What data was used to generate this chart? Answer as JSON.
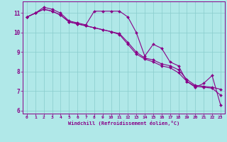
{
  "title": "",
  "xlabel": "Windchill (Refroidissement éolien,°C)",
  "ylabel": "",
  "bg_color": "#b0e8e8",
  "line_color": "#880088",
  "grid_color": "#88cccc",
  "spine_color": "#880088",
  "x_hours": [
    0,
    1,
    2,
    3,
    4,
    5,
    6,
    7,
    8,
    9,
    10,
    11,
    12,
    13,
    14,
    15,
    16,
    17,
    18,
    19,
    20,
    21,
    22,
    23
  ],
  "series1": [
    10.8,
    11.0,
    11.3,
    11.2,
    11.0,
    10.6,
    10.5,
    10.4,
    11.1,
    11.1,
    11.1,
    11.1,
    10.8,
    10.0,
    8.8,
    9.4,
    9.2,
    8.5,
    8.3,
    7.5,
    7.2,
    7.4,
    7.8,
    6.3
  ],
  "series2": [
    10.8,
    11.0,
    11.2,
    11.1,
    10.9,
    10.55,
    10.45,
    10.35,
    10.25,
    10.15,
    10.05,
    9.95,
    9.5,
    9.0,
    8.7,
    8.6,
    8.4,
    8.3,
    8.1,
    7.6,
    7.3,
    7.25,
    7.2,
    7.1
  ],
  "series3": [
    10.8,
    11.0,
    11.2,
    11.1,
    10.9,
    10.55,
    10.45,
    10.35,
    10.25,
    10.15,
    10.05,
    9.9,
    9.4,
    8.9,
    8.65,
    8.5,
    8.3,
    8.2,
    7.95,
    7.5,
    7.25,
    7.2,
    7.15,
    6.8
  ],
  "ylim": [
    5.85,
    11.6
  ],
  "xlim": [
    -0.5,
    23.5
  ],
  "yticks": [
    6,
    7,
    8,
    9,
    10,
    11
  ],
  "xticks": [
    0,
    1,
    2,
    3,
    4,
    5,
    6,
    7,
    8,
    9,
    10,
    11,
    12,
    13,
    14,
    15,
    16,
    17,
    18,
    19,
    20,
    21,
    22,
    23
  ]
}
